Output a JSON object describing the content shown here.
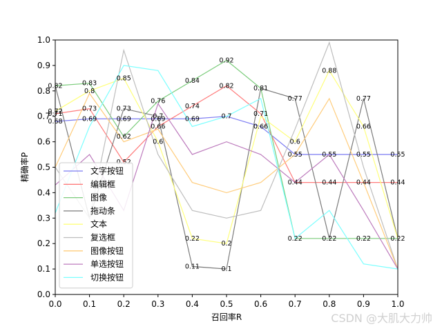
{
  "chart_data": {
    "type": "line",
    "title": "",
    "xlabel": "召回率R",
    "ylabel": "精确率P",
    "xlim": [
      0,
      1
    ],
    "ylim": [
      0,
      1
    ],
    "xticks": [
      "0.0",
      "0.1",
      "0.2",
      "0.3",
      "0.4",
      "0.5",
      "0.6",
      "0.7",
      "0.8",
      "0.9",
      "1.0"
    ],
    "yticks": [
      "0.0",
      "0.1",
      "0.2",
      "0.3",
      "0.4",
      "0.5",
      "0.6",
      "0.7",
      "0.8",
      "0.9",
      "1.0"
    ],
    "x": [
      0.0,
      0.1,
      0.2,
      0.3,
      0.4,
      0.5,
      0.6,
      0.7,
      0.8,
      0.9,
      1.0
    ],
    "legend_position": "bottom-left",
    "grid": false,
    "series": [
      {
        "name": "文字按钮",
        "color": "#7b7bf2",
        "values": [
          0.68,
          0.69,
          0.69,
          0.69,
          0.69,
          0.7,
          0.66,
          0.55,
          0.55,
          0.55,
          0.55
        ]
      },
      {
        "name": "编辑框",
        "color": "#ff7b7b",
        "values": [
          0.71,
          0.73,
          0.52,
          0.66,
          0.74,
          0.82,
          0.71,
          0.44,
          0.44,
          0.44,
          0.44
        ]
      },
      {
        "name": "图像",
        "color": "#7bcc7b",
        "values": [
          0.82,
          0.83,
          0.62,
          0.76,
          0.84,
          0.92,
          0.81,
          0.22,
          0.22,
          0.22,
          0.22
        ]
      },
      {
        "name": "拖动条",
        "color": "#7b7b7b",
        "values": [
          0.82,
          0.3,
          0.73,
          0.7,
          0.11,
          0.1,
          0.81,
          0.77,
          0.22,
          0.77,
          0.22
        ]
      },
      {
        "name": "文本",
        "color": "#ffff7b",
        "values": [
          0.72,
          0.8,
          0.85,
          0.6,
          0.22,
          0.2,
          0.7,
          0.6,
          0.88,
          0.66,
          0.22
        ]
      },
      {
        "name": "复选框",
        "color": "#bdbdbd",
        "values": [
          0.5,
          0.3,
          0.96,
          0.55,
          0.33,
          0.3,
          0.33,
          0.65,
          0.99,
          0.5,
          0.1
        ]
      },
      {
        "name": "图像按钮",
        "color": "#ffcc7b",
        "values": [
          0.5,
          0.79,
          0.6,
          0.65,
          0.44,
          0.4,
          0.44,
          0.55,
          0.77,
          0.44,
          0.1
        ]
      },
      {
        "name": "单选按钮",
        "color": "#bd7bbd",
        "values": [
          0.43,
          0.55,
          0.33,
          0.75,
          0.55,
          0.6,
          0.55,
          0.44,
          0.55,
          0.33,
          0.1
        ]
      },
      {
        "name": "切换按钮",
        "color": "#7bffff",
        "values": [
          0.32,
          0.66,
          0.9,
          0.88,
          0.66,
          0.7,
          0.77,
          0.22,
          0.33,
          0.12,
          0.1
        ]
      }
    ],
    "data_labels": [
      {
        "x": 0.0,
        "y": 0.82,
        "text": "0.82"
      },
      {
        "x": 0.0,
        "y": 0.72,
        "text": "0.72"
      },
      {
        "x": 0.0,
        "y": 0.71,
        "text": "0.71"
      },
      {
        "x": 0.0,
        "y": 0.68,
        "text": "0.68"
      },
      {
        "x": 0.1,
        "y": 0.83,
        "text": "0.83"
      },
      {
        "x": 0.1,
        "y": 0.8,
        "text": "0.8"
      },
      {
        "x": 0.1,
        "y": 0.73,
        "text": "0.73"
      },
      {
        "x": 0.1,
        "y": 0.69,
        "text": "0.69"
      },
      {
        "x": 0.2,
        "y": 0.85,
        "text": "0.85"
      },
      {
        "x": 0.2,
        "y": 0.73,
        "text": "0.73"
      },
      {
        "x": 0.2,
        "y": 0.69,
        "text": "0.69"
      },
      {
        "x": 0.2,
        "y": 0.62,
        "text": "0.62"
      },
      {
        "x": 0.2,
        "y": 0.52,
        "text": "0.52"
      },
      {
        "x": 0.3,
        "y": 0.76,
        "text": "0.76"
      },
      {
        "x": 0.3,
        "y": 0.7,
        "text": "0.7"
      },
      {
        "x": 0.3,
        "y": 0.69,
        "text": "0.69"
      },
      {
        "x": 0.3,
        "y": 0.66,
        "text": "0.66"
      },
      {
        "x": 0.3,
        "y": 0.6,
        "text": "0.6"
      },
      {
        "x": 0.4,
        "y": 0.84,
        "text": "0.84"
      },
      {
        "x": 0.4,
        "y": 0.74,
        "text": "0.74"
      },
      {
        "x": 0.4,
        "y": 0.69,
        "text": "0.69"
      },
      {
        "x": 0.4,
        "y": 0.22,
        "text": "0.22"
      },
      {
        "x": 0.4,
        "y": 0.11,
        "text": "0.11"
      },
      {
        "x": 0.5,
        "y": 0.92,
        "text": "0.92"
      },
      {
        "x": 0.5,
        "y": 0.82,
        "text": "0.82"
      },
      {
        "x": 0.5,
        "y": 0.7,
        "text": "0.7"
      },
      {
        "x": 0.5,
        "y": 0.2,
        "text": "0.2"
      },
      {
        "x": 0.5,
        "y": 0.1,
        "text": "0.1"
      },
      {
        "x": 0.6,
        "y": 0.81,
        "text": "0.81"
      },
      {
        "x": 0.6,
        "y": 0.71,
        "text": "0.71"
      },
      {
        "x": 0.6,
        "y": 0.66,
        "text": "0.66"
      },
      {
        "x": 0.7,
        "y": 0.77,
        "text": "0.77"
      },
      {
        "x": 0.7,
        "y": 0.6,
        "text": "0.6"
      },
      {
        "x": 0.7,
        "y": 0.55,
        "text": "0.55"
      },
      {
        "x": 0.7,
        "y": 0.44,
        "text": "0.44"
      },
      {
        "x": 0.7,
        "y": 0.22,
        "text": "0.22"
      },
      {
        "x": 0.8,
        "y": 0.88,
        "text": "0.88"
      },
      {
        "x": 0.8,
        "y": 0.55,
        "text": "0.55"
      },
      {
        "x": 0.8,
        "y": 0.44,
        "text": "0.44"
      },
      {
        "x": 0.8,
        "y": 0.22,
        "text": "0.22"
      },
      {
        "x": 0.9,
        "y": 0.77,
        "text": "0.77"
      },
      {
        "x": 0.9,
        "y": 0.66,
        "text": "0.66"
      },
      {
        "x": 0.9,
        "y": 0.55,
        "text": "0.55"
      },
      {
        "x": 0.9,
        "y": 0.44,
        "text": "0.44"
      },
      {
        "x": 0.9,
        "y": 0.22,
        "text": "0.22"
      },
      {
        "x": 1.0,
        "y": 0.55,
        "text": "0.55"
      },
      {
        "x": 1.0,
        "y": 0.44,
        "text": "0.44"
      },
      {
        "x": 1.0,
        "y": 0.22,
        "text": "0.22"
      }
    ]
  },
  "watermark": "CSDN @大肌大力帅"
}
